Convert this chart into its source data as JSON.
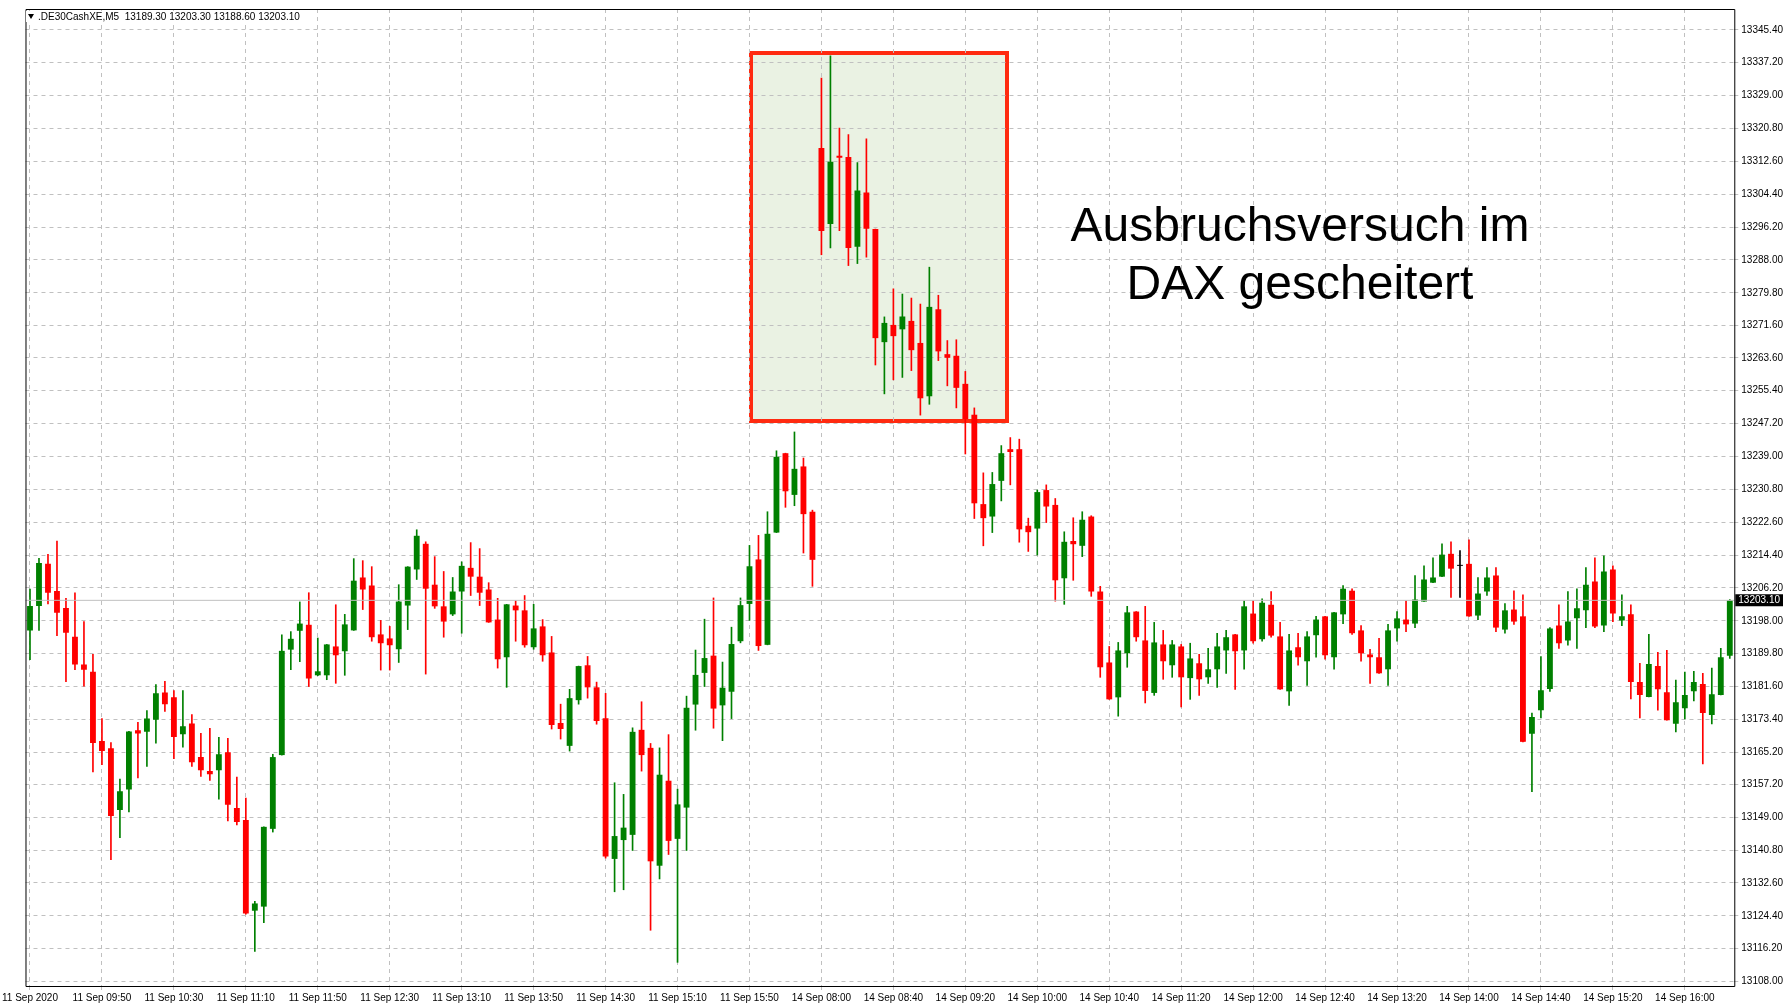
{
  "chart_data": {
    "type": "candlestick",
    "annotations": [
      ".DE30CashXE,M5  13189.30 13203.30 13188.60 13203.10",
      "Ausbruchsversuch im DAX gescheitert"
    ],
    "categories": [
      "11 Sep 2020",
      null,
      null,
      null,
      null,
      null,
      null,
      null,
      "11 Sep 09:50",
      null,
      null,
      null,
      null,
      null,
      null,
      null,
      "11 Sep 10:30",
      null,
      null,
      null,
      null,
      null,
      null,
      null,
      "11 Sep 11:10",
      null,
      null,
      null,
      null,
      null,
      null,
      null,
      "11 Sep 11:50",
      null,
      null,
      null,
      null,
      null,
      null,
      null,
      "11 Sep 12:30",
      null,
      null,
      null,
      null,
      null,
      null,
      null,
      "11 Sep 13:10",
      null,
      null,
      null,
      null,
      null,
      null,
      null,
      "11 Sep 13:50",
      null,
      null,
      null,
      null,
      null,
      null,
      null,
      "11 Sep 14:30",
      null,
      null,
      null,
      null,
      null,
      null,
      null,
      "11 Sep 15:10",
      null,
      null,
      null,
      null,
      null,
      null,
      null,
      "11 Sep 15:50",
      null,
      null,
      null,
      null,
      null,
      null,
      null,
      "14 Sep 08:00",
      null,
      null,
      null,
      null,
      null,
      null,
      null,
      "14 Sep 08:40",
      null,
      null,
      null,
      null,
      null,
      null,
      null,
      "14 Sep 09:20",
      null,
      null,
      null,
      null,
      null,
      null,
      null,
      "14 Sep 10:00",
      null,
      null,
      null,
      null,
      null,
      null,
      null,
      "14 Sep 10:40",
      null,
      null,
      null,
      null,
      null,
      null,
      null,
      "14 Sep 11:20",
      null,
      null,
      null,
      null,
      null,
      null,
      null,
      "14 Sep 12:00",
      null,
      null,
      null,
      null,
      null,
      null,
      null,
      "14 Sep 12:40",
      null,
      null,
      null,
      null,
      null,
      null,
      null,
      "14 Sep 13:20",
      null,
      null,
      null,
      null,
      null,
      null,
      null,
      "14 Sep 14:00",
      null,
      null,
      null,
      null,
      null,
      null,
      null,
      "14 Sep 14:40",
      null,
      null,
      null,
      null,
      null,
      null,
      null,
      "14 Sep 15:20",
      null,
      null,
      null,
      null,
      null,
      null,
      null,
      "14 Sep 16:00",
      null,
      null,
      null,
      null,
      null
    ],
    "ohlc": [
      [
        13195.6,
        13205.9,
        13188.3,
        13201.7
      ],
      [
        13201.7,
        13213.6,
        13195.6,
        13212.4
      ],
      [
        13212.2,
        13214.6,
        13202.2,
        13205.0
      ],
      [
        13205.4,
        13217.9,
        13194.3,
        13200.0
      ],
      [
        13201.2,
        13203.6,
        13182.8,
        13195.0
      ],
      [
        13194.0,
        13205.0,
        13185.8,
        13187.1
      ],
      [
        13187.1,
        13197.8,
        13181.7,
        13185.8
      ],
      [
        13185.3,
        13189.6,
        13160.3,
        13167.5
      ],
      [
        13168.0,
        13173.6,
        13162.1,
        13165.5
      ],
      [
        13166.2,
        13167.6,
        13138.4,
        13149.3
      ],
      [
        13150.8,
        13158.5,
        13143.9,
        13155.5
      ],
      [
        13155.9,
        13170.4,
        13150.3,
        13170.4
      ],
      [
        13170.7,
        13172.7,
        13158.8,
        13169.9
      ],
      [
        13170.3,
        13175.6,
        13161.7,
        13173.6
      ],
      [
        13173.3,
        13182.1,
        13167.5,
        13179.9
      ],
      [
        13180.1,
        13182.9,
        13175.4,
        13177.2
      ],
      [
        13178.9,
        13180.6,
        13163.6,
        13169.0
      ],
      [
        13169.7,
        13180.6,
        13166.5,
        13171.7
      ],
      [
        13172.4,
        13174.6,
        13161.7,
        13162.7
      ],
      [
        13164.0,
        13169.9,
        13159.2,
        13160.7
      ],
      [
        13160.5,
        13171.2,
        13158.2,
        13159.7
      ],
      [
        13160.7,
        13168.9,
        13153.5,
        13164.7
      ],
      [
        13165.2,
        13168.7,
        13148.1,
        13152.1
      ],
      [
        13151.3,
        13159.0,
        13147.1,
        13147.8
      ],
      [
        13148.3,
        13153.8,
        13124.8,
        13125.0
      ],
      [
        13125.7,
        13128.0,
        13115.5,
        13127.5
      ],
      [
        13126.7,
        13146.6,
        13122.7,
        13146.6
      ],
      [
        13146.1,
        13164.7,
        13145.3,
        13164.0
      ],
      [
        13164.5,
        13194.5,
        13164.5,
        13190.5
      ],
      [
        13190.8,
        13195.3,
        13185.8,
        13193.5
      ],
      [
        13195.5,
        13202.7,
        13187.8,
        13197.3
      ],
      [
        13197.0,
        13205.0,
        13181.6,
        13183.6
      ],
      [
        13184.4,
        13193.7,
        13184.3,
        13185.4
      ],
      [
        13184.4,
        13192.1,
        13183.3,
        13192.1
      ],
      [
        13191.6,
        13202.0,
        13182.4,
        13189.4
      ],
      [
        13190.4,
        13199.6,
        13184.4,
        13197.1
      ],
      [
        13195.6,
        13213.5,
        13195.6,
        13208.0
      ],
      [
        13208.8,
        13213.0,
        13200.8,
        13205.8
      ],
      [
        13206.8,
        13211.5,
        13192.9,
        13193.9
      ],
      [
        13194.6,
        13198.1,
        13185.7,
        13192.4
      ],
      [
        13193.6,
        13196.6,
        13185.7,
        13191.9
      ],
      [
        13190.9,
        13207.0,
        13187.6,
        13202.8
      ],
      [
        13201.8,
        13211.5,
        13195.8,
        13211.5
      ],
      [
        13210.8,
        13220.7,
        13208.3,
        13219.2
      ],
      [
        13217.2,
        13217.7,
        13184.7,
        13206.0
      ],
      [
        13207.0,
        13214.0,
        13201.1,
        13201.6
      ],
      [
        13201.6,
        13210.3,
        13193.9,
        13197.8
      ],
      [
        13199.6,
        13208.8,
        13199.3,
        13205.3
      ],
      [
        13205.3,
        13212.7,
        13194.9,
        13211.7
      ],
      [
        13211.2,
        13217.5,
        13204.3,
        13209.0
      ],
      [
        13209.0,
        13216.0,
        13201.8,
        13205.0
      ],
      [
        13205.8,
        13207.5,
        13197.6,
        13197.6
      ],
      [
        13198.3,
        13203.6,
        13186.2,
        13188.4
      ],
      [
        13188.9,
        13202.1,
        13181.4,
        13202.1
      ],
      [
        13201.8,
        13203.0,
        13192.9,
        13200.6
      ],
      [
        13200.6,
        13204.3,
        13191.4,
        13191.9
      ],
      [
        13191.4,
        13202.1,
        13190.9,
        13196.1
      ],
      [
        13196.6,
        13198.3,
        13187.9,
        13189.4
      ],
      [
        13190.1,
        13194.1,
        13171.0,
        13172.0
      ],
      [
        13172.5,
        13177.2,
        13168.5,
        13171.0
      ],
      [
        13166.8,
        13180.9,
        13165.5,
        13178.7
      ],
      [
        13178.2,
        13186.7,
        13177.2,
        13186.7
      ],
      [
        13186.9,
        13189.1,
        13178.7,
        13181.4
      ],
      [
        13181.4,
        13182.7,
        13172.2,
        13173.0
      ],
      [
        13173.7,
        13179.9,
        13138.8,
        13139.2
      ],
      [
        13138.6,
        13157.6,
        13130.4,
        13144.3
      ],
      [
        13143.3,
        13154.7,
        13130.9,
        13146.4
      ],
      [
        13144.6,
        13171.3,
        13140.7,
        13170.3
      ],
      [
        13170.8,
        13177.8,
        13160.5,
        13164.5
      ],
      [
        13166.3,
        13167.4,
        13120.8,
        13138.0
      ],
      [
        13136.9,
        13166.3,
        13133.6,
        13159.6
      ],
      [
        13158.1,
        13169.6,
        13139.7,
        13143.1
      ],
      [
        13143.6,
        13156.0,
        13112.8,
        13152.2
      ],
      [
        13151.4,
        13179.2,
        13140.7,
        13176.3
      ],
      [
        13177.1,
        13190.7,
        13170.7,
        13184.5
      ],
      [
        13185.0,
        13198.4,
        13181.6,
        13188.7
      ],
      [
        13189.3,
        13203.7,
        13171.2,
        13176.1
      ],
      [
        13176.9,
        13187.7,
        13168.1,
        13181.3
      ],
      [
        13180.3,
        13196.4,
        13173.6,
        13192.2
      ],
      [
        13192.9,
        13203.7,
        13192.5,
        13201.9
      ],
      [
        13202.2,
        13216.8,
        13198.1,
        13211.6
      ],
      [
        13213.3,
        13219.3,
        13190.6,
        13191.7
      ],
      [
        13192.0,
        13225.2,
        13192.0,
        13219.7
      ],
      [
        13220.0,
        13240.4,
        13220.0,
        13238.9
      ],
      [
        13239.8,
        13239.8,
        13226.3,
        13230.3
      ],
      [
        13229.4,
        13245.1,
        13226.7,
        13235.9
      ],
      [
        13236.5,
        13238.6,
        13214.9,
        13224.6
      ],
      [
        13225.2,
        13225.6,
        13206.6,
        13213.2
      ],
      [
        13315.9,
        13333.4,
        13289.3,
        13295.2
      ],
      [
        13297.0,
        13338.9,
        13291.0,
        13312.5
      ],
      [
        13314.0,
        13320.9,
        13295.3,
        13313.5
      ],
      [
        13313.7,
        13319.3,
        13286.6,
        13291.0
      ],
      [
        13291.3,
        13312.3,
        13287.1,
        13305.3
      ],
      [
        13304.8,
        13318.2,
        13288.7,
        13295.8
      ],
      [
        13295.7,
        13295.7,
        13261.8,
        13268.5
      ],
      [
        13267.5,
        13273.8,
        13254.6,
        13272.3
      ],
      [
        13271.8,
        13280.8,
        13258.1,
        13269.0
      ],
      [
        13270.7,
        13279.5,
        13258.7,
        13273.9
      ],
      [
        13272.8,
        13278.5,
        13260.4,
        13265.5
      ],
      [
        13267.3,
        13277.0,
        13249.3,
        13253.5
      ],
      [
        13254.0,
        13286.2,
        13252.0,
        13276.3
      ],
      [
        13275.7,
        13279.2,
        13262.9,
        13265.2
      ],
      [
        13264.5,
        13267.9,
        13256.6,
        13263.6
      ],
      [
        13264.1,
        13268.1,
        13251.1,
        13256.1
      ],
      [
        13257.1,
        13260.2,
        13239.6,
        13248.3
      ],
      [
        13249.4,
        13251.1,
        13223.5,
        13227.3
      ],
      [
        13227.1,
        13234.9,
        13216.7,
        13223.6
      ],
      [
        13224.0,
        13235.0,
        13220.0,
        13232.1
      ],
      [
        13232.9,
        13241.7,
        13227.9,
        13239.8
      ],
      [
        13240.8,
        13243.7,
        13231.9,
        13240.1
      ],
      [
        13240.8,
        13243.3,
        13217.6,
        13220.8
      ],
      [
        13221.7,
        13223.6,
        13215.3,
        13220.1
      ],
      [
        13221.0,
        13230.6,
        13214.4,
        13230.1
      ],
      [
        13230.6,
        13231.9,
        13222.5,
        13226.5
      ],
      [
        13226.9,
        13228.5,
        13202.9,
        13208.1
      ],
      [
        13208.6,
        13220.2,
        13202.1,
        13217.7
      ],
      [
        13217.9,
        13223.7,
        13208.1,
        13217.1
      ],
      [
        13216.7,
        13225.2,
        13214.0,
        13223.2
      ],
      [
        13224.0,
        13224.2,
        13204.1,
        13205.3
      ],
      [
        13205.3,
        13206.6,
        13183.9,
        13186.4
      ],
      [
        13187.6,
        13191.6,
        13178.4,
        13178.4
      ],
      [
        13178.9,
        13192.6,
        13174.2,
        13190.6
      ],
      [
        13189.9,
        13201.6,
        13186.4,
        13200.1
      ],
      [
        13200.3,
        13200.3,
        13192.9,
        13193.9
      ],
      [
        13193.1,
        13201.6,
        13177.5,
        13180.5
      ],
      [
        13180.0,
        13197.6,
        13179.4,
        13192.6
      ],
      [
        13192.1,
        13195.6,
        13183.4,
        13187.9
      ],
      [
        13186.9,
        13193.1,
        13183.9,
        13192.1
      ],
      [
        13191.6,
        13192.1,
        13176.5,
        13183.9
      ],
      [
        13183.7,
        13192.4,
        13178.4,
        13188.6
      ],
      [
        13187.4,
        13189.6,
        13179.4,
        13183.4
      ],
      [
        13183.9,
        13191.1,
        13182.4,
        13185.9
      ],
      [
        13185.9,
        13194.9,
        13181.4,
        13191.6
      ],
      [
        13190.6,
        13195.6,
        13184.9,
        13193.9
      ],
      [
        13194.6,
        13194.6,
        13180.9,
        13190.4
      ],
      [
        13190.6,
        13203.0,
        13185.9,
        13201.6
      ],
      [
        13199.8,
        13203.0,
        13192.4,
        13192.9
      ],
      [
        13193.4,
        13203.5,
        13192.9,
        13202.5
      ],
      [
        13202.0,
        13205.3,
        13193.9,
        13194.3
      ],
      [
        13194.1,
        13197.6,
        13180.9,
        13180.9
      ],
      [
        13180.4,
        13194.6,
        13176.9,
        13190.6
      ],
      [
        13191.4,
        13194.9,
        13186.9,
        13188.9
      ],
      [
        13187.9,
        13195.3,
        13181.9,
        13194.1
      ],
      [
        13194.4,
        13199.1,
        13188.9,
        13198.3
      ],
      [
        13199.1,
        13199.1,
        13188.4,
        13189.4
      ],
      [
        13188.9,
        13200.1,
        13185.9,
        13200.1
      ],
      [
        13199.6,
        13206.8,
        13197.3,
        13206.0
      ],
      [
        13205.5,
        13206.0,
        13194.6,
        13194.9
      ],
      [
        13195.6,
        13196.8,
        13187.9,
        13189.9
      ],
      [
        13189.6,
        13190.9,
        13182.4,
        13188.9
      ],
      [
        13188.9,
        13193.6,
        13184.9,
        13184.9
      ],
      [
        13185.9,
        13197.1,
        13181.9,
        13195.6
      ],
      [
        13196.1,
        13200.3,
        13192.9,
        13198.6
      ],
      [
        13198.3,
        13203.0,
        13195.3,
        13197.1
      ],
      [
        13197.3,
        13209.3,
        13196.3,
        13203.3
      ],
      [
        13202.8,
        13211.7,
        13202.8,
        13208.3
      ],
      [
        13207.5,
        13213.7,
        13207.5,
        13208.8
      ],
      [
        13209.0,
        13217.2,
        13209.0,
        13214.5
      ],
      [
        13214.7,
        13217.7,
        13203.8,
        13211.0
      ],
      [
        13211.7,
        13215.5,
        13203.8,
        13211.7
      ],
      [
        13212.2,
        13218.2,
        13199.1,
        13199.1
      ],
      [
        13199.3,
        13208.8,
        13198.3,
        13204.8
      ],
      [
        13205.3,
        13211.3,
        13204.3,
        13208.8
      ],
      [
        13209.3,
        13211.3,
        13195.3,
        13196.3
      ],
      [
        13195.8,
        13202.3,
        13194.9,
        13200.6
      ],
      [
        13200.8,
        13205.5,
        13197.1,
        13197.8
      ],
      [
        13199.1,
        13204.5,
        13167.8,
        13167.8
      ],
      [
        13169.8,
        13175.0,
        13155.4,
        13174.0
      ],
      [
        13175.7,
        13189.1,
        13173.8,
        13180.7
      ],
      [
        13181.0,
        13196.3,
        13180.4,
        13196.1
      ],
      [
        13196.8,
        13202.0,
        13191.1,
        13192.4
      ],
      [
        13193.1,
        13205.3,
        13191.9,
        13197.8
      ],
      [
        13198.6,
        13206.0,
        13191.1,
        13201.1
      ],
      [
        13200.6,
        13211.3,
        13196.3,
        13207.0
      ],
      [
        13207.8,
        13213.7,
        13196.3,
        13196.6
      ],
      [
        13196.8,
        13214.2,
        13195.3,
        13210.3
      ],
      [
        13210.8,
        13211.7,
        13197.8,
        13199.8
      ],
      [
        13198.1,
        13204.5,
        13196.8,
        13199.1
      ],
      [
        13199.6,
        13202.0,
        13178.5,
        13182.7
      ],
      [
        13182.7,
        13187.4,
        13173.8,
        13179.5
      ],
      [
        13179.0,
        13194.6,
        13179.0,
        13187.2
      ],
      [
        13186.7,
        13190.1,
        13175.7,
        13180.9
      ],
      [
        13180.2,
        13190.6,
        13173.2,
        13173.2
      ],
      [
        13172.3,
        13183.2,
        13170.3,
        13177.7
      ],
      [
        13176.2,
        13185.2,
        13173.5,
        13179.5
      ],
      [
        13180.4,
        13185.4,
        13178.0,
        13182.7
      ],
      [
        13182.2,
        13184.9,
        13162.3,
        13175.0
      ],
      [
        13174.5,
        13186.2,
        13172.3,
        13179.7
      ],
      [
        13179.5,
        13191.1,
        13179.5,
        13188.9
      ],
      [
        13189.3,
        13203.3,
        13188.6,
        13203.1
      ]
    ],
    "colors": [
      "#008000",
      "#008000",
      "#ff0000",
      "#ff0000",
      "#ff0000",
      "#ff0000",
      "#ff0000",
      "#ff0000",
      "#ff0000",
      "#ff0000",
      "#008000",
      "#008000",
      "#ff0000",
      "#008000",
      "#008000",
      "#ff0000",
      "#ff0000",
      "#008000",
      "#ff0000",
      "#ff0000",
      "#ff0000",
      "#008000",
      "#ff0000",
      "#ff0000",
      "#ff0000",
      "#008000",
      "#008000",
      "#008000",
      "#008000",
      "#008000",
      "#008000",
      "#ff0000",
      "#008000",
      "#008000",
      "#ff0000",
      "#008000",
      "#008000",
      "#ff0000",
      "#ff0000",
      "#ff0000",
      "#ff0000",
      "#008000",
      "#008000",
      "#008000",
      "#ff0000",
      "#ff0000",
      "#ff0000",
      "#008000",
      "#008000",
      "#ff0000",
      "#ff0000",
      "#ff0000",
      "#ff0000",
      "#008000",
      "#ff0000",
      "#ff0000",
      "#008000",
      "#ff0000",
      "#ff0000",
      "#ff0000",
      "#008000",
      "#008000",
      "#ff0000",
      "#ff0000",
      "#ff0000",
      "#008000",
      "#008000",
      "#008000",
      "#ff0000",
      "#ff0000",
      "#008000",
      "#ff0000",
      "#008000",
      "#008000",
      "#008000",
      "#008000",
      "#ff0000",
      "#008000",
      "#008000",
      "#008000",
      "#008000",
      "#ff0000",
      "#008000",
      "#008000",
      "#ff0000",
      "#008000",
      "#ff0000",
      "#ff0000",
      "#ff0000",
      "#008000",
      "#ff0000",
      "#ff0000",
      "#008000",
      "#ff0000",
      "#ff0000",
      "#008000",
      "#ff0000",
      "#008000",
      "#ff0000",
      "#ff0000",
      "#008000",
      "#ff0000",
      "#ff0000",
      "#ff0000",
      "#ff0000",
      "#ff0000",
      "#ff0000",
      "#008000",
      "#008000",
      "#ff0000",
      "#ff0000",
      "#ff0000",
      "#008000",
      "#ff0000",
      "#ff0000",
      "#008000",
      "#ff0000",
      "#008000",
      "#ff0000",
      "#ff0000",
      "#ff0000",
      "#008000",
      "#008000",
      "#ff0000",
      "#ff0000",
      "#008000",
      "#ff0000",
      "#008000",
      "#ff0000",
      "#008000",
      "#ff0000",
      "#008000",
      "#008000",
      "#008000",
      "#ff0000",
      "#008000",
      "#ff0000",
      "#008000",
      "#ff0000",
      "#ff0000",
      "#008000",
      "#ff0000",
      "#008000",
      "#008000",
      "#ff0000",
      "#008000",
      "#008000",
      "#ff0000",
      "#ff0000",
      "#ff0000",
      "#ff0000",
      "#008000",
      "#008000",
      "#ff0000",
      "#008000",
      "#008000",
      "#008000",
      "#008000",
      "#ff0000",
      "#000000",
      "#ff0000",
      "#008000",
      "#008000",
      "#ff0000",
      "#008000",
      "#ff0000",
      "#ff0000",
      "#008000",
      "#008000",
      "#008000",
      "#ff0000",
      "#008000",
      "#008000",
      "#008000",
      "#ff0000",
      "#008000",
      "#ff0000",
      "#008000",
      "#ff0000",
      "#ff0000",
      "#008000",
      "#ff0000",
      "#ff0000",
      "#008000",
      "#008000",
      "#008000",
      "#ff0000",
      "#008000",
      "#008000",
      "#008000"
    ],
    "ylim": [
      13106.9,
      13350.6
    ],
    "yticks": [
      {
        "value": 13108.0,
        "label": "13108.00"
      },
      {
        "value": 13116.2,
        "label": "13116.20"
      },
      {
        "value": 13124.4,
        "label": "13124.40"
      },
      {
        "value": 13132.6,
        "label": "13132.60"
      },
      {
        "value": 13140.8,
        "label": "13140.80"
      },
      {
        "value": 13149.0,
        "label": "13149.00"
      },
      {
        "value": 13157.2,
        "label": "13157.20"
      },
      {
        "value": 13165.2,
        "label": "13165.20"
      },
      {
        "value": 13173.4,
        "label": "13173.40"
      },
      {
        "value": 13181.6,
        "label": "13181.60"
      },
      {
        "value": 13189.8,
        "label": "13189.80"
      },
      {
        "value": 13198.0,
        "label": "13198.00"
      },
      {
        "value": 13206.2,
        "label": "13206.20"
      },
      {
        "value": 13214.4,
        "label": "13214.40"
      },
      {
        "value": 13222.6,
        "label": "13222.60"
      },
      {
        "value": 13230.8,
        "label": "13230.80"
      },
      {
        "value": 13239.0,
        "label": "13239.00"
      },
      {
        "value": 13247.2,
        "label": "13247.20"
      },
      {
        "value": 13255.4,
        "label": "13255.40"
      },
      {
        "value": 13263.6,
        "label": "13263.60"
      },
      {
        "value": 13271.6,
        "label": "13271.60"
      },
      {
        "value": 13279.8,
        "label": "13279.80"
      },
      {
        "value": 13288.0,
        "label": "13288.00"
      },
      {
        "value": 13296.2,
        "label": "13296.20"
      },
      {
        "value": 13304.4,
        "label": "13304.40"
      },
      {
        "value": 13312.6,
        "label": "13312.60"
      },
      {
        "value": 13320.8,
        "label": "13320.80"
      },
      {
        "value": 13329.0,
        "label": "13329.00"
      },
      {
        "value": 13337.2,
        "label": "13337.20"
      },
      {
        "value": 13345.4,
        "label": "13345.40"
      }
    ],
    "ref_lines": [
      {
        "axis": "y",
        "value": 13203.1,
        "label": "13203.10",
        "color": "#c0c0c0"
      }
    ],
    "grid": true
  }
}
